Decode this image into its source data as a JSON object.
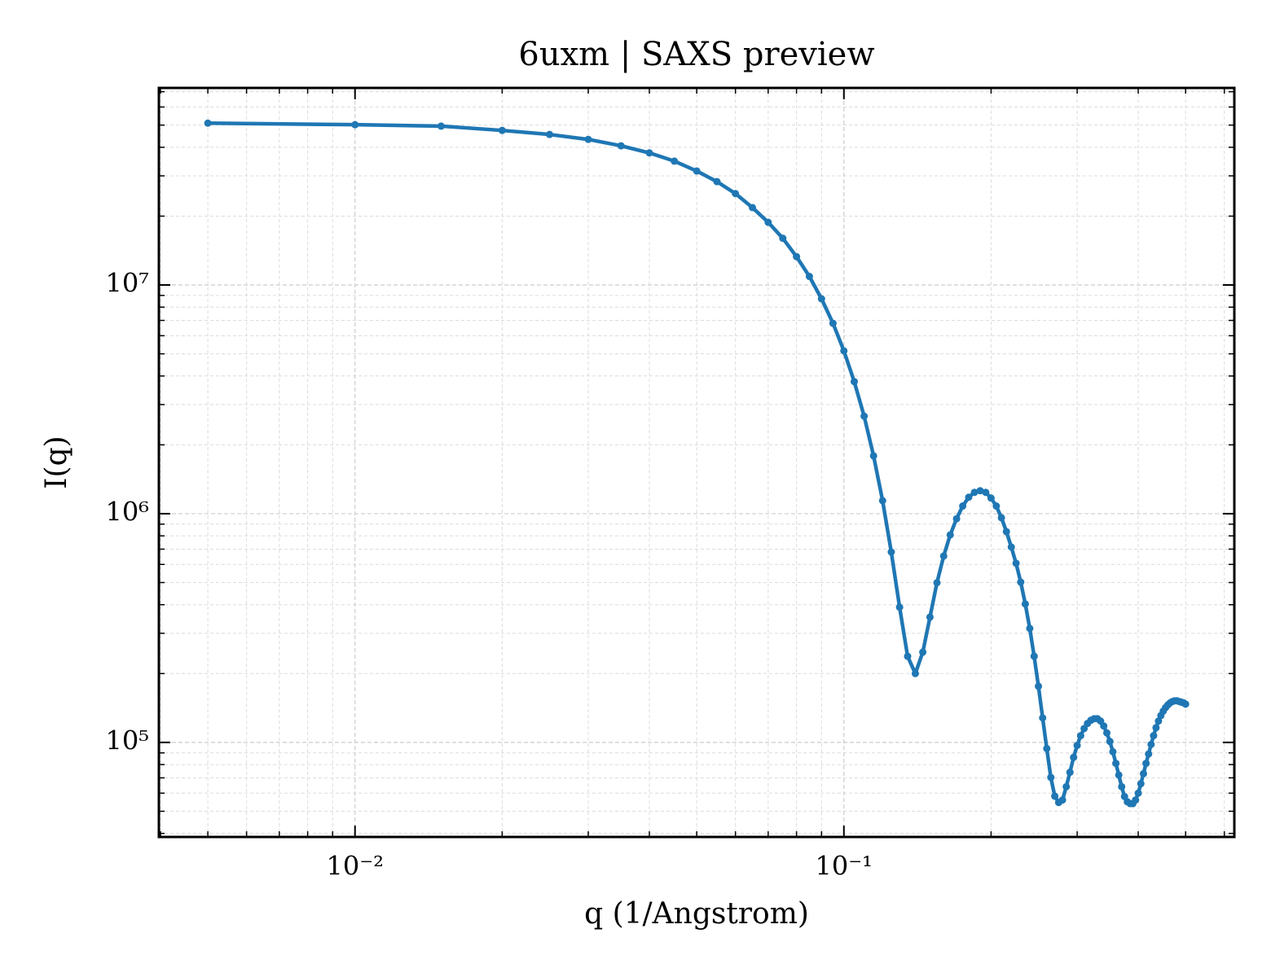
{
  "chart_data": {
    "type": "line",
    "title": "6uxm | SAXS preview",
    "xlabel": "q (1/Angstrom)",
    "ylabel": "I(q)",
    "xscale": "log",
    "yscale": "log",
    "grid": true,
    "xlim": [
      0.00397,
      0.629
    ],
    "ylim": [
      38600,
      72700000
    ],
    "xticks": [
      {
        "value": 0.01,
        "label": "10⁻²"
      },
      {
        "value": 0.1,
        "label": "10⁻¹"
      }
    ],
    "yticks": [
      {
        "value": 100000,
        "label": "10⁵"
      },
      {
        "value": 1000000,
        "label": "10⁶"
      },
      {
        "value": 10000000,
        "label": "10⁷"
      }
    ],
    "xminorticks": [
      0.004,
      0.005,
      0.006,
      0.007,
      0.008,
      0.009,
      0.02,
      0.03,
      0.04,
      0.05,
      0.06,
      0.07,
      0.08,
      0.09,
      0.2,
      0.3,
      0.4,
      0.5,
      0.6
    ],
    "yminorticks": [
      40000,
      50000,
      60000,
      70000,
      80000,
      90000,
      200000,
      300000,
      400000,
      500000,
      600000,
      700000,
      800000,
      900000,
      2000000,
      3000000,
      4000000,
      5000000,
      6000000,
      7000000,
      8000000,
      9000000,
      20000000,
      30000000,
      40000000,
      50000000,
      60000000,
      70000000
    ],
    "series": [
      {
        "name": "I(q)",
        "color": "#1f77b4",
        "x": [
          0.005,
          0.01,
          0.015,
          0.02,
          0.025,
          0.03,
          0.035,
          0.04,
          0.045,
          0.05,
          0.055,
          0.06,
          0.065,
          0.07,
          0.075,
          0.08,
          0.085,
          0.09,
          0.095,
          0.1,
          0.105,
          0.11,
          0.115,
          0.12,
          0.125,
          0.13,
          0.135,
          0.14,
          0.145,
          0.15,
          0.155,
          0.16,
          0.165,
          0.17,
          0.175,
          0.18,
          0.185,
          0.19,
          0.195,
          0.2,
          0.205,
          0.21,
          0.215,
          0.22,
          0.225,
          0.23,
          0.235,
          0.24,
          0.245,
          0.25,
          0.255,
          0.26,
          0.265,
          0.27,
          0.275,
          0.28,
          0.285,
          0.29,
          0.295,
          0.3,
          0.305,
          0.31,
          0.315,
          0.32,
          0.325,
          0.33,
          0.335,
          0.34,
          0.345,
          0.35,
          0.355,
          0.36,
          0.365,
          0.37,
          0.375,
          0.38,
          0.385,
          0.39,
          0.395,
          0.4,
          0.405,
          0.41,
          0.415,
          0.42,
          0.425,
          0.43,
          0.435,
          0.44,
          0.445,
          0.45,
          0.455,
          0.46,
          0.465,
          0.47,
          0.475,
          0.48,
          0.485,
          0.49,
          0.495,
          0.5
        ],
        "values": [
          51000000,
          50200000,
          49500000,
          47400000,
          45500000,
          43300000,
          40600000,
          37800000,
          34800000,
          31500000,
          28300000,
          25100000,
          21800000,
          18800000,
          16000000,
          13300000,
          10900000,
          8700000,
          6800000,
          5150000,
          3780000,
          2670000,
          1790000,
          1140000,
          680000,
          390000,
          238000,
          200000,
          248000,
          353000,
          499000,
          653000,
          808000,
          950000,
          1080000,
          1180000,
          1240000,
          1260000,
          1240000,
          1170000,
          1080000,
          960000,
          835000,
          715000,
          607000,
          502000,
          403000,
          315000,
          238000,
          176000,
          128000,
          94000,
          70300,
          58200,
          54600,
          56000,
          64000,
          74000,
          86000,
          97000,
          107000,
          115000,
          121000,
          125000,
          127000,
          127000,
          124000,
          118000,
          110000,
          101000,
          91000,
          81000,
          72000,
          64000,
          58000,
          55000,
          54000,
          54000,
          56000,
          60000,
          66000,
          73000,
          81000,
          89000,
          98000,
          107000,
          116000,
          124000,
          131000,
          137000,
          142000,
          146000,
          149000,
          151000,
          152000,
          152000,
          151000,
          150000,
          149000,
          147000
        ]
      }
    ]
  }
}
